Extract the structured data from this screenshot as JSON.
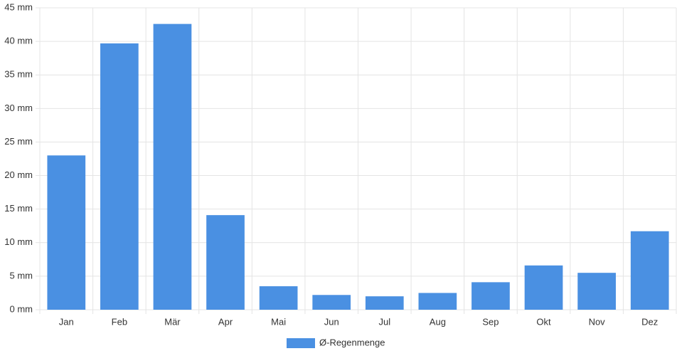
{
  "chart_data": {
    "type": "bar",
    "categories": [
      "Jan",
      "Feb",
      "Mär",
      "Apr",
      "Mai",
      "Jun",
      "Jul",
      "Aug",
      "Sep",
      "Okt",
      "Nov",
      "Dez"
    ],
    "series": [
      {
        "name": "Ø-Regenmenge",
        "color": "#4a90e2",
        "values": [
          23.0,
          39.7,
          42.6,
          14.1,
          3.5,
          2.2,
          2.0,
          2.5,
          4.1,
          6.6,
          5.5,
          11.7
        ]
      }
    ],
    "ylim": [
      0,
      45
    ],
    "yticks": [
      {
        "value": 0,
        "label": "0 mm"
      },
      {
        "value": 5,
        "label": "5 mm"
      },
      {
        "value": 10,
        "label": "10 mm"
      },
      {
        "value": 15,
        "label": "15 mm"
      },
      {
        "value": 20,
        "label": "20 mm"
      },
      {
        "value": 25,
        "label": "25 mm"
      },
      {
        "value": 30,
        "label": "30 mm"
      },
      {
        "value": 35,
        "label": "35 mm"
      },
      {
        "value": 40,
        "label": "40 mm"
      },
      {
        "value": 45,
        "label": "45 mm"
      }
    ],
    "grid": true,
    "legend": "bottom"
  }
}
